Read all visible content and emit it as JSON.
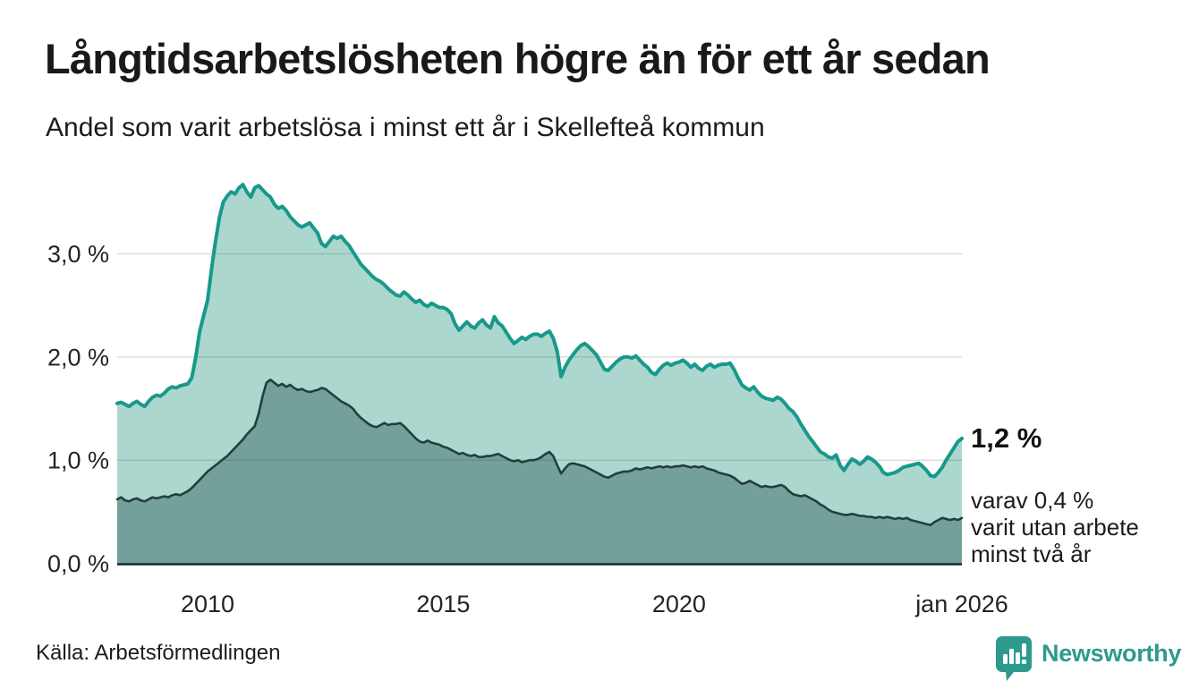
{
  "header": {
    "title": "Långtidsarbetslösheten högre än för ett år sedan",
    "subtitle": "Andel som varit arbetslösa i minst ett år i Skellefteå kommun"
  },
  "footer": {
    "source": "Källa: Arbetsförmedlingen",
    "brand": "Newsworthy"
  },
  "colors": {
    "accent_teal": "#18998b",
    "light_fill": "#abd7cf",
    "dark_fill": "#74a09b",
    "dark_line": "#20403b",
    "axis": "#15282b",
    "grid": "#d9dcdb",
    "brand_teal": "#2d9a8e"
  },
  "chart_data": {
    "type": "area",
    "title": "Långtidsarbetslösheten högre än för ett år sedan",
    "subtitle": "Andel som varit arbetslösa i minst ett år i Skellefteå kommun",
    "unit": "%",
    "frequency": "monthly",
    "x_start": "2008-02",
    "x_end": "2026-01",
    "ylim": [
      0,
      3.85
    ],
    "grid": "horizontal",
    "grid_values": [
      1.0,
      2.0,
      3.0
    ],
    "y_ticks": [
      {
        "value": 0,
        "label": "0,0 %"
      },
      {
        "value": 1,
        "label": "1,0 %"
      },
      {
        "value": 2,
        "label": "2,0 %"
      },
      {
        "value": 3,
        "label": "3,0 %"
      }
    ],
    "x_ticks": [
      {
        "t": 2010.0,
        "label": "2010"
      },
      {
        "t": 2015.0,
        "label": "2015"
      },
      {
        "t": 2020.0,
        "label": "2020"
      },
      {
        "t": 2026.0,
        "label": "jan 2026"
      }
    ],
    "series": [
      {
        "name": "Andel arbetslösa minst ett år",
        "line_color": "#18998b",
        "fill_color": "#abd7cf",
        "values": [
          1.55,
          1.56,
          1.54,
          1.52,
          1.55,
          1.57,
          1.54,
          1.52,
          1.57,
          1.61,
          1.63,
          1.62,
          1.65,
          1.69,
          1.71,
          1.7,
          1.72,
          1.73,
          1.74,
          1.8,
          2.0,
          2.25,
          2.4,
          2.55,
          2.85,
          3.12,
          3.35,
          3.5,
          3.56,
          3.6,
          3.58,
          3.64,
          3.67,
          3.6,
          3.55,
          3.64,
          3.66,
          3.62,
          3.58,
          3.55,
          3.48,
          3.44,
          3.46,
          3.42,
          3.36,
          3.32,
          3.28,
          3.26,
          3.28,
          3.3,
          3.25,
          3.2,
          3.1,
          3.07,
          3.12,
          3.17,
          3.15,
          3.17,
          3.12,
          3.08,
          3.02,
          2.96,
          2.9,
          2.86,
          2.82,
          2.78,
          2.75,
          2.73,
          2.7,
          2.66,
          2.63,
          2.6,
          2.59,
          2.63,
          2.6,
          2.56,
          2.53,
          2.55,
          2.51,
          2.49,
          2.52,
          2.5,
          2.48,
          2.48,
          2.46,
          2.42,
          2.32,
          2.26,
          2.3,
          2.34,
          2.3,
          2.28,
          2.33,
          2.36,
          2.31,
          2.28,
          2.39,
          2.33,
          2.3,
          2.24,
          2.18,
          2.13,
          2.16,
          2.19,
          2.17,
          2.2,
          2.22,
          2.22,
          2.2,
          2.23,
          2.25,
          2.18,
          2.05,
          1.81,
          1.9,
          1.97,
          2.02,
          2.07,
          2.11,
          2.13,
          2.1,
          2.06,
          2.02,
          1.95,
          1.88,
          1.87,
          1.91,
          1.95,
          1.98,
          2.0,
          2.0,
          1.99,
          2.01,
          1.97,
          1.93,
          1.9,
          1.85,
          1.83,
          1.88,
          1.92,
          1.94,
          1.92,
          1.94,
          1.95,
          1.97,
          1.94,
          1.9,
          1.93,
          1.89,
          1.87,
          1.91,
          1.93,
          1.9,
          1.92,
          1.93,
          1.93,
          1.94,
          1.88,
          1.8,
          1.73,
          1.7,
          1.68,
          1.71,
          1.66,
          1.62,
          1.6,
          1.59,
          1.58,
          1.61,
          1.59,
          1.55,
          1.5,
          1.47,
          1.42,
          1.35,
          1.29,
          1.23,
          1.18,
          1.13,
          1.08,
          1.06,
          1.03,
          1.02,
          1.05,
          0.95,
          0.9,
          0.96,
          1.01,
          0.99,
          0.96,
          0.99,
          1.03,
          1.01,
          0.98,
          0.94,
          0.88,
          0.86,
          0.87,
          0.88,
          0.9,
          0.93,
          0.94,
          0.95,
          0.96,
          0.97,
          0.94,
          0.9,
          0.85,
          0.84,
          0.88,
          0.93,
          1.0,
          1.06,
          1.12,
          1.18,
          1.21
        ]
      },
      {
        "name": "Andel arbetslösa minst två år",
        "line_color": "#20403b",
        "fill_color": "#74a09b",
        "values": [
          0.62,
          0.64,
          0.61,
          0.6,
          0.62,
          0.63,
          0.61,
          0.6,
          0.62,
          0.64,
          0.63,
          0.64,
          0.65,
          0.64,
          0.66,
          0.67,
          0.66,
          0.68,
          0.7,
          0.73,
          0.77,
          0.81,
          0.85,
          0.89,
          0.92,
          0.95,
          0.98,
          1.01,
          1.04,
          1.08,
          1.12,
          1.16,
          1.2,
          1.25,
          1.29,
          1.33,
          1.45,
          1.62,
          1.75,
          1.78,
          1.75,
          1.72,
          1.74,
          1.71,
          1.73,
          1.7,
          1.68,
          1.69,
          1.67,
          1.66,
          1.67,
          1.68,
          1.7,
          1.69,
          1.66,
          1.63,
          1.6,
          1.57,
          1.55,
          1.53,
          1.5,
          1.45,
          1.41,
          1.38,
          1.35,
          1.33,
          1.32,
          1.34,
          1.36,
          1.34,
          1.35,
          1.35,
          1.36,
          1.33,
          1.29,
          1.25,
          1.21,
          1.18,
          1.17,
          1.19,
          1.17,
          1.16,
          1.15,
          1.13,
          1.12,
          1.1,
          1.08,
          1.06,
          1.07,
          1.05,
          1.04,
          1.05,
          1.03,
          1.03,
          1.04,
          1.04,
          1.05,
          1.06,
          1.04,
          1.02,
          1.0,
          0.99,
          1.0,
          0.98,
          0.99,
          1.0,
          1.0,
          1.01,
          1.03,
          1.06,
          1.08,
          1.04,
          0.95,
          0.87,
          0.92,
          0.96,
          0.97,
          0.96,
          0.95,
          0.94,
          0.92,
          0.9,
          0.88,
          0.86,
          0.84,
          0.83,
          0.85,
          0.87,
          0.88,
          0.89,
          0.89,
          0.9,
          0.92,
          0.91,
          0.92,
          0.93,
          0.92,
          0.93,
          0.94,
          0.93,
          0.94,
          0.93,
          0.94,
          0.94,
          0.95,
          0.94,
          0.93,
          0.94,
          0.93,
          0.94,
          0.92,
          0.91,
          0.9,
          0.88,
          0.87,
          0.86,
          0.85,
          0.83,
          0.8,
          0.77,
          0.78,
          0.8,
          0.78,
          0.76,
          0.74,
          0.75,
          0.74,
          0.74,
          0.75,
          0.76,
          0.74,
          0.7,
          0.67,
          0.66,
          0.65,
          0.66,
          0.64,
          0.62,
          0.6,
          0.57,
          0.55,
          0.52,
          0.5,
          0.49,
          0.48,
          0.47,
          0.47,
          0.48,
          0.47,
          0.46,
          0.46,
          0.45,
          0.45,
          0.44,
          0.45,
          0.44,
          0.45,
          0.44,
          0.43,
          0.44,
          0.43,
          0.44,
          0.42,
          0.41,
          0.4,
          0.39,
          0.38,
          0.37,
          0.4,
          0.42,
          0.44,
          0.43,
          0.42,
          0.43,
          0.42,
          0.44
        ]
      }
    ],
    "annotation": {
      "value_label": "1,2 %",
      "lines": [
        "varav 0,4 %",
        "varit utan arbete",
        "minst två år"
      ]
    }
  }
}
